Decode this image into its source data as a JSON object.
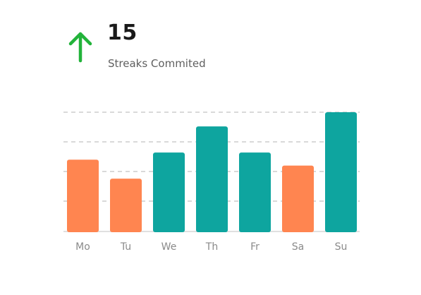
{
  "stat": {
    "value": "15",
    "label": "Streaks Commited",
    "trend_icon": "arrow-up-icon",
    "trend_color": "#22b33a"
  },
  "colors": {
    "up": "#0ea59f",
    "down": "#ff8550",
    "grid": "#d9d9d9",
    "baseline": "#e0e0e0",
    "tick_text": "#8a8a8a"
  },
  "chart_data": {
    "type": "bar",
    "title": "",
    "xlabel": "",
    "ylabel": "",
    "categories": [
      "Mo",
      "Tu",
      "We",
      "Th",
      "Fr",
      "Sa",
      "Su"
    ],
    "values": [
      60,
      44,
      66,
      88,
      66,
      55,
      100
    ],
    "status": [
      "down",
      "down",
      "up",
      "up",
      "up",
      "down",
      "up"
    ],
    "ylim": [
      0,
      100
    ],
    "grid": "horizontal-dashed",
    "legend": "none"
  }
}
